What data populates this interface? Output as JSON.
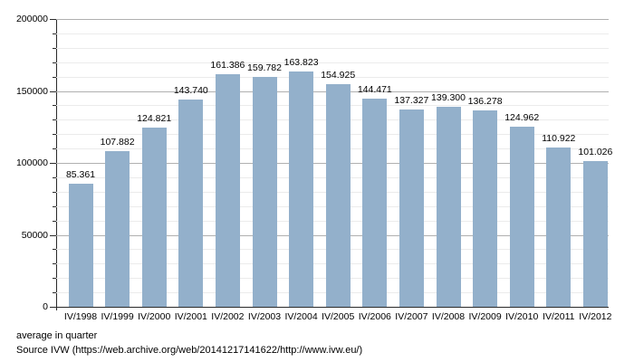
{
  "chart_data": {
    "type": "bar",
    "categories": [
      "IV/1998",
      "IV/1999",
      "IV/2000",
      "IV/2001",
      "IV/2002",
      "IV/2003",
      "IV/2004",
      "IV/2005",
      "IV/2006",
      "IV/2007",
      "IV/2008",
      "IV/2009",
      "IV/2010",
      "IV/2011",
      "IV/2012"
    ],
    "values": [
      85361,
      107882,
      124821,
      143740,
      161386,
      159782,
      163823,
      154925,
      144471,
      137327,
      139300,
      136278,
      124962,
      110922,
      101026
    ],
    "value_labels": [
      "85.361",
      "107.882",
      "124.821",
      "143.740",
      "161.386",
      "159.782",
      "163.823",
      "154.925",
      "144.471",
      "137.327",
      "139.300",
      "136.278",
      "124.962",
      "110.922",
      "101.026"
    ],
    "title": "",
    "xlabel": "",
    "ylabel": "",
    "ylim": [
      0,
      200000
    ],
    "y_major_step": 50000,
    "y_minor_step": 10000,
    "y_major_tick_labels_top_to_bottom": [
      "200000",
      "150000",
      "100000",
      "50000",
      "0"
    ],
    "grid": "on",
    "legend": "none"
  },
  "footer": {
    "caption": "average in quarter",
    "source": "Source IVW (https://web.archive.org/web/20141217141622/http://www.ivw.eu/)"
  },
  "colors": {
    "bar": "#93b0cb",
    "grid_major": "#b0b0b0",
    "grid_minor": "#ebebeb",
    "axis": "#2a2a2a",
    "text": "#000000",
    "background": "#ffffff"
  }
}
